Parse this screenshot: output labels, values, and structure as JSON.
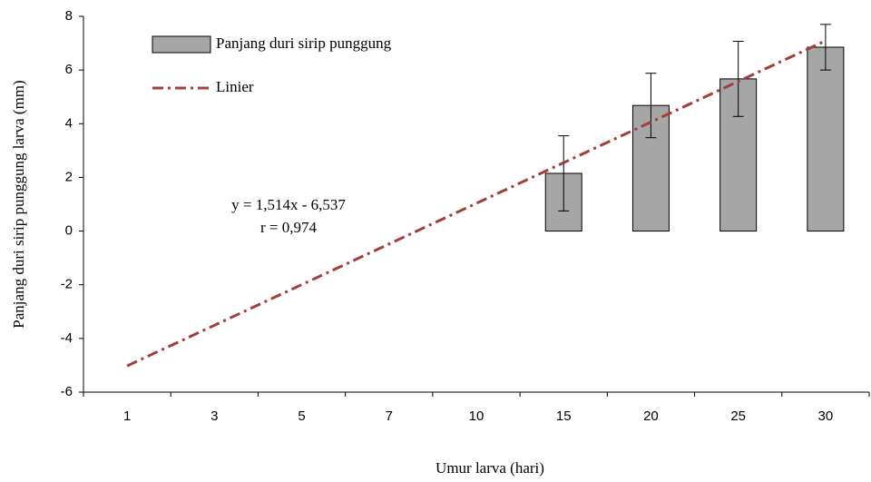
{
  "chart_data": {
    "type": "bar",
    "x_label": "Umur larva  (hari)",
    "y_label": "Panjang duri sirip punggung larva  (mm)",
    "categories": [
      "1",
      "3",
      "5",
      "7",
      "10",
      "15",
      "20",
      "25",
      "30"
    ],
    "series": [
      {
        "name": "Panjang duri sirip punggung",
        "type": "bar",
        "color": "#a6a6a6",
        "values": [
          null,
          null,
          null,
          null,
          null,
          2.15,
          4.68,
          5.67,
          6.85
        ],
        "errors": [
          null,
          null,
          null,
          null,
          null,
          1.4,
          1.2,
          1.4,
          0.85
        ]
      },
      {
        "name": "Linier",
        "type": "line",
        "color": "#a0403c",
        "values": [
          -5.023,
          -3.509,
          -1.995,
          -0.481,
          1.033,
          2.547,
          4.061,
          5.575,
          7.089
        ]
      }
    ],
    "annotations": [
      "y = 1,514x - 6,537",
      "r = 0,974"
    ],
    "ylim": [
      -6,
      8
    ],
    "yticks": [
      -6,
      -4,
      -2,
      0,
      2,
      4,
      6,
      8
    ]
  }
}
